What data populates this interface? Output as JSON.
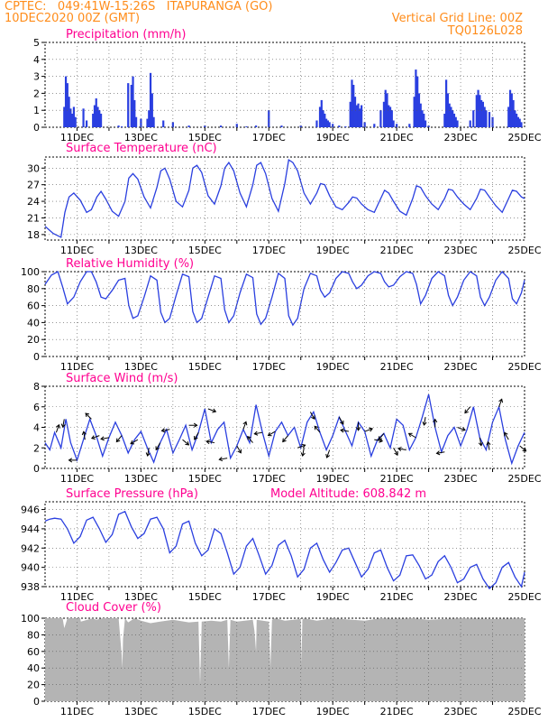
{
  "header": {
    "line1_left": "CPTEC:   049:41W-15:26S   ITAPURANGA (GO)",
    "line2_left": "10DEC2020 00Z (GMT)",
    "line1_right": "Vertical Grid Line: 00Z",
    "line2_right": "TQ0126L028"
  },
  "colors": {
    "header": "#ff8c1a",
    "title": "#ff0090",
    "series": "#2a3fe0",
    "cloud": "#b4b4b4",
    "grid": "#555555"
  },
  "chart_data": [
    {
      "id": "precip",
      "type": "bar",
      "title": "Precipitation (mm/h)",
      "x_range": [
        0,
        15
      ],
      "ylim": [
        0,
        5
      ],
      "yticks": [
        0,
        1,
        2,
        3,
        4,
        5
      ],
      "xtick_labels": [
        "11DEC",
        "13DEC",
        "15DEC",
        "17DEC",
        "19DEC",
        "21DEC",
        "23DEC",
        "25DEC"
      ],
      "x": [
        0.6,
        0.65,
        0.7,
        0.75,
        0.8,
        0.85,
        0.9,
        0.95,
        1.2,
        1.3,
        1.5,
        1.55,
        1.6,
        1.65,
        1.7,
        1.75,
        2.3,
        2.4,
        2.6,
        2.7,
        2.75,
        2.8,
        2.85,
        3.0,
        3.2,
        3.25,
        3.3,
        3.35,
        3.4,
        3.7,
        4.0,
        4.5,
        5.0,
        5.5,
        6.0,
        6.3,
        6.6,
        7.0,
        7.4,
        8.0,
        8.5,
        8.6,
        8.65,
        8.7,
        8.75,
        8.8,
        8.85,
        8.9,
        9.0,
        9.2,
        9.4,
        9.55,
        9.6,
        9.65,
        9.7,
        9.75,
        9.8,
        9.85,
        9.9,
        10.0,
        10.3,
        10.5,
        10.6,
        10.65,
        10.7,
        10.75,
        10.8,
        10.85,
        10.9,
        11.0,
        11.4,
        11.55,
        11.6,
        11.65,
        11.7,
        11.75,
        11.8,
        11.85,
        11.9,
        12.0,
        12.5,
        12.55,
        12.6,
        12.65,
        12.7,
        12.75,
        12.8,
        12.85,
        12.9,
        13.3,
        13.4,
        13.5,
        13.55,
        13.6,
        13.65,
        13.7,
        13.75,
        13.8,
        13.9,
        14.0,
        14.5,
        14.55,
        14.6,
        14.65,
        14.7,
        14.75,
        14.8,
        14.85,
        14.9
      ],
      "values": [
        1.2,
        3.0,
        2.6,
        1.8,
        1.1,
        0.8,
        1.2,
        0.6,
        1.1,
        0.4,
        0.8,
        1.3,
        1.7,
        1.2,
        1.0,
        0.8,
        0.1,
        0.05,
        2.6,
        2.5,
        3.0,
        1.6,
        0.6,
        0.5,
        0.5,
        1.0,
        3.2,
        2.0,
        0.6,
        0.4,
        0.3,
        0.1,
        0.1,
        0.1,
        0.2,
        0.05,
        0.1,
        1.0,
        0.1,
        0.1,
        0.4,
        1.2,
        1.6,
        1.0,
        0.8,
        0.5,
        0.4,
        0.3,
        0.2,
        0.1,
        0.05,
        1.5,
        2.8,
        2.5,
        1.8,
        1.3,
        1.4,
        1.1,
        1.3,
        0.3,
        0.2,
        1.0,
        1.5,
        2.2,
        2.0,
        1.3,
        1.2,
        1.0,
        0.4,
        0.2,
        0.2,
        1.8,
        3.4,
        3.0,
        2.0,
        1.4,
        1.0,
        0.8,
        0.4,
        0.1,
        0.8,
        2.8,
        2.0,
        1.4,
        1.2,
        1.0,
        0.8,
        0.6,
        0.4,
        0.4,
        1.0,
        1.9,
        2.2,
        1.9,
        1.6,
        1.5,
        1.2,
        1.0,
        0.9,
        0.6,
        1.2,
        2.2,
        2.0,
        1.6,
        1.0,
        0.8,
        0.6,
        0.5,
        0.3
      ]
    },
    {
      "id": "temp",
      "type": "line",
      "title": "Surface Temperature (nC)",
      "x_range": [
        0,
        15
      ],
      "ylim": [
        17,
        32
      ],
      "yticks": [
        18,
        21,
        24,
        27,
        30
      ],
      "xtick_labels": [
        "11DEC",
        "13DEC",
        "15DEC",
        "17DEC",
        "19DEC",
        "21DEC",
        "23DEC",
        "25DEC"
      ],
      "x": [
        0,
        0.25,
        0.5,
        0.62,
        0.75,
        0.9,
        1.1,
        1.3,
        1.45,
        1.62,
        1.75,
        1.9,
        2.1,
        2.3,
        2.5,
        2.62,
        2.75,
        2.9,
        3.1,
        3.3,
        3.5,
        3.62,
        3.75,
        3.9,
        4.1,
        4.3,
        4.5,
        4.62,
        4.75,
        4.9,
        5.1,
        5.3,
        5.5,
        5.62,
        5.75,
        5.9,
        6.1,
        6.3,
        6.5,
        6.62,
        6.75,
        6.9,
        7.1,
        7.3,
        7.5,
        7.62,
        7.75,
        7.9,
        8.1,
        8.3,
        8.5,
        8.62,
        8.75,
        8.9,
        9.1,
        9.3,
        9.5,
        9.62,
        9.75,
        9.9,
        10.1,
        10.3,
        10.5,
        10.62,
        10.75,
        10.9,
        11.1,
        11.3,
        11.5,
        11.62,
        11.75,
        11.9,
        12.1,
        12.3,
        12.5,
        12.62,
        12.75,
        12.9,
        13.1,
        13.3,
        13.5,
        13.62,
        13.75,
        13.9,
        14.1,
        14.3,
        14.5,
        14.62,
        14.75,
        14.9,
        15.0
      ],
      "values": [
        19.5,
        18.2,
        17.5,
        22.0,
        24.8,
        25.5,
        24.2,
        22.0,
        22.5,
        24.8,
        25.8,
        24.4,
        22.2,
        21.3,
        24.0,
        28.2,
        29.0,
        28.0,
        24.8,
        22.8,
        26.5,
        29.5,
        30.0,
        28.0,
        24.0,
        23.0,
        26.0,
        30.0,
        30.5,
        29.2,
        25.0,
        23.5,
        26.8,
        30.0,
        31.0,
        29.5,
        25.5,
        23.0,
        27.0,
        30.5,
        31.0,
        29.0,
        24.5,
        22.2,
        27.2,
        31.5,
        31.0,
        29.5,
        25.5,
        23.5,
        25.5,
        27.2,
        27.0,
        25.0,
        23.0,
        22.5,
        23.8,
        24.8,
        24.6,
        23.5,
        22.5,
        22.0,
        24.5,
        26.0,
        25.5,
        24.0,
        22.2,
        21.5,
        24.5,
        26.8,
        26.5,
        25.0,
        23.5,
        22.5,
        24.5,
        26.2,
        26.0,
        24.8,
        23.5,
        22.5,
        24.5,
        26.2,
        26.0,
        24.8,
        23.2,
        22.0,
        24.5,
        26.0,
        25.8,
        24.8,
        24.5
      ]
    },
    {
      "id": "rh",
      "type": "line",
      "title": "Relative Humidity (%)",
      "x_range": [
        0,
        15
      ],
      "ylim": [
        0,
        100
      ],
      "yticks": [
        0,
        20,
        40,
        60,
        80,
        100
      ],
      "xtick_labels": [
        "11DEC",
        "13DEC",
        "15DEC",
        "17DEC",
        "19DEC",
        "21DEC",
        "23DEC",
        "25DEC"
      ],
      "x": [
        0,
        0.2,
        0.4,
        0.55,
        0.7,
        0.9,
        1.1,
        1.3,
        1.45,
        1.6,
        1.75,
        1.9,
        2.1,
        2.3,
        2.5,
        2.62,
        2.75,
        2.9,
        3.1,
        3.3,
        3.5,
        3.62,
        3.75,
        3.9,
        4.1,
        4.3,
        4.5,
        4.62,
        4.75,
        4.9,
        5.1,
        5.3,
        5.5,
        5.62,
        5.75,
        5.9,
        6.1,
        6.3,
        6.5,
        6.62,
        6.75,
        6.9,
        7.1,
        7.3,
        7.5,
        7.62,
        7.75,
        7.9,
        8.1,
        8.3,
        8.5,
        8.62,
        8.75,
        8.9,
        9.1,
        9.3,
        9.5,
        9.62,
        9.75,
        9.9,
        10.1,
        10.3,
        10.5,
        10.62,
        10.75,
        10.9,
        11.1,
        11.3,
        11.5,
        11.62,
        11.75,
        11.9,
        12.1,
        12.3,
        12.5,
        12.62,
        12.75,
        12.9,
        13.1,
        13.3,
        13.5,
        13.62,
        13.75,
        13.9,
        14.1,
        14.3,
        14.5,
        14.62,
        14.75,
        14.9,
        15.0
      ],
      "values": [
        85,
        96,
        100,
        82,
        62,
        70,
        88,
        100,
        100,
        88,
        70,
        68,
        78,
        90,
        92,
        60,
        45,
        48,
        70,
        95,
        90,
        52,
        40,
        45,
        72,
        97,
        94,
        53,
        40,
        45,
        70,
        95,
        92,
        55,
        40,
        48,
        75,
        97,
        93,
        50,
        38,
        45,
        70,
        98,
        92,
        48,
        37,
        45,
        80,
        98,
        95,
        78,
        70,
        75,
        92,
        100,
        98,
        88,
        80,
        84,
        95,
        100,
        98,
        88,
        82,
        84,
        94,
        100,
        98,
        85,
        62,
        72,
        92,
        100,
        95,
        72,
        60,
        70,
        90,
        100,
        95,
        70,
        60,
        70,
        90,
        100,
        92,
        68,
        62,
        75,
        90
      ]
    },
    {
      "id": "wind",
      "type": "line",
      "title": "Surface Wind (m/s)",
      "x_range": [
        0,
        15
      ],
      "ylim": [
        0,
        8
      ],
      "yticks": [
        0,
        2,
        4,
        6,
        8
      ],
      "xtick_labels": [
        "11DEC",
        "13DEC",
        "15DEC",
        "17DEC",
        "19DEC",
        "21DEC",
        "23DEC",
        "25DEC"
      ],
      "x": [
        0,
        0.15,
        0.3,
        0.5,
        0.65,
        0.8,
        1.0,
        1.2,
        1.4,
        1.6,
        1.8,
        2.0,
        2.2,
        2.4,
        2.6,
        2.8,
        3.0,
        3.2,
        3.4,
        3.6,
        3.8,
        4.0,
        4.2,
        4.4,
        4.6,
        4.8,
        5.0,
        5.2,
        5.4,
        5.6,
        5.8,
        6.0,
        6.2,
        6.4,
        6.6,
        6.8,
        7.0,
        7.2,
        7.4,
        7.6,
        7.8,
        8.0,
        8.2,
        8.4,
        8.6,
        8.8,
        9.0,
        9.2,
        9.4,
        9.6,
        9.8,
        10.0,
        10.2,
        10.4,
        10.6,
        10.8,
        11.0,
        11.2,
        11.4,
        11.6,
        11.8,
        12.0,
        12.2,
        12.4,
        12.6,
        12.8,
        13.0,
        13.2,
        13.4,
        13.6,
        13.8,
        14.0,
        14.2,
        14.4,
        14.6,
        14.8,
        15.0
      ],
      "values": [
        2.5,
        1.8,
        3.5,
        2.0,
        4.8,
        2.5,
        0.8,
        2.8,
        4.8,
        3.2,
        1.2,
        3.0,
        4.5,
        3.2,
        1.5,
        2.8,
        3.6,
        2.0,
        0.6,
        2.5,
        3.8,
        1.5,
        2.8,
        4.2,
        1.8,
        3.5,
        5.8,
        2.5,
        3.8,
        4.5,
        1.0,
        2.2,
        3.8,
        2.5,
        6.2,
        3.5,
        1.2,
        3.6,
        4.5,
        3.2,
        4.0,
        2.0,
        4.5,
        5.5,
        3.5,
        1.8,
        3.2,
        5.0,
        3.6,
        2.2,
        4.5,
        3.6,
        1.2,
        2.8,
        3.4,
        2.0,
        4.8,
        4.2,
        1.8,
        3.0,
        5.0,
        7.2,
        4.0,
        1.6,
        3.2,
        4.0,
        2.2,
        3.8,
        6.0,
        3.0,
        1.8,
        4.5,
        6.0,
        2.8,
        0.5,
        2.2,
        3.5
      ],
      "arrows": [
        {
          "x": 0.35,
          "angle": 70
        },
        {
          "x": 0.6,
          "angle": -100
        },
        {
          "x": 1.0,
          "angle": 180
        },
        {
          "x": 1.25,
          "angle": 100
        },
        {
          "x": 1.45,
          "angle": 135
        },
        {
          "x": 1.7,
          "angle": -160
        },
        {
          "x": 2.0,
          "angle": -170
        },
        {
          "x": 2.4,
          "angle": -130
        },
        {
          "x": 2.9,
          "angle": -150
        },
        {
          "x": 3.25,
          "angle": -100
        },
        {
          "x": 3.6,
          "angle": -120
        },
        {
          "x": 3.9,
          "angle": -170
        },
        {
          "x": 4.3,
          "angle": -40
        },
        {
          "x": 4.5,
          "angle": 0
        },
        {
          "x": 4.8,
          "angle": -120
        },
        {
          "x": 5.1,
          "angle": -20
        },
        {
          "x": 5.3,
          "angle": 170
        },
        {
          "x": 5.7,
          "angle": -170
        },
        {
          "x": 6.0,
          "angle": -60
        },
        {
          "x": 6.2,
          "angle": 70
        },
        {
          "x": 6.5,
          "angle": 130
        },
        {
          "x": 6.8,
          "angle": -170
        },
        {
          "x": 7.2,
          "angle": -150
        },
        {
          "x": 7.6,
          "angle": -130
        },
        {
          "x": 7.9,
          "angle": 20
        },
        {
          "x": 8.1,
          "angle": -100
        },
        {
          "x": 8.3,
          "angle": -60
        },
        {
          "x": 8.6,
          "angle": 130
        },
        {
          "x": 8.9,
          "angle": -110
        },
        {
          "x": 9.2,
          "angle": -60
        },
        {
          "x": 9.5,
          "angle": 170
        },
        {
          "x": 9.8,
          "angle": -90
        },
        {
          "x": 10.0,
          "angle": 20
        },
        {
          "x": 10.3,
          "angle": -10
        },
        {
          "x": 10.6,
          "angle": -130
        },
        {
          "x": 10.9,
          "angle": -60
        },
        {
          "x": 11.3,
          "angle": 170
        },
        {
          "x": 11.6,
          "angle": 150
        },
        {
          "x": 11.9,
          "angle": -100
        },
        {
          "x": 12.2,
          "angle": 90
        },
        {
          "x": 12.5,
          "angle": -170
        },
        {
          "x": 12.9,
          "angle": -20
        },
        {
          "x": 13.3,
          "angle": -130
        },
        {
          "x": 13.6,
          "angle": -80
        },
        {
          "x": 13.9,
          "angle": 100
        },
        {
          "x": 14.2,
          "angle": 70
        },
        {
          "x": 14.5,
          "angle": 120
        },
        {
          "x": 14.85,
          "angle": -40
        }
      ]
    },
    {
      "id": "pressure",
      "type": "line",
      "title": "Surface Pressure (hPa)",
      "annotation": "Model Altitude: 608.842 m",
      "x_range": [
        0,
        15
      ],
      "ylim": [
        938,
        946.8
      ],
      "yticks": [
        938,
        940,
        942,
        944,
        946
      ],
      "xtick_labels": [
        "11DEC",
        "13DEC",
        "15DEC",
        "17DEC",
        "19DEC",
        "21DEC",
        "23DEC",
        "25DEC"
      ],
      "x": [
        0,
        0.15,
        0.3,
        0.5,
        0.7,
        0.9,
        1.1,
        1.3,
        1.5,
        1.7,
        1.9,
        2.1,
        2.3,
        2.5,
        2.7,
        2.9,
        3.1,
        3.3,
        3.5,
        3.7,
        3.9,
        4.1,
        4.3,
        4.5,
        4.7,
        4.9,
        5.1,
        5.3,
        5.5,
        5.7,
        5.9,
        6.1,
        6.3,
        6.5,
        6.7,
        6.9,
        7.1,
        7.3,
        7.5,
        7.7,
        7.9,
        8.1,
        8.3,
        8.5,
        8.7,
        8.9,
        9.1,
        9.3,
        9.5,
        9.7,
        9.9,
        10.1,
        10.3,
        10.5,
        10.7,
        10.9,
        11.1,
        11.3,
        11.5,
        11.7,
        11.9,
        12.1,
        12.3,
        12.5,
        12.7,
        12.9,
        13.1,
        13.3,
        13.5,
        13.7,
        13.9,
        14.1,
        14.3,
        14.5,
        14.7,
        14.9,
        15.0
      ],
      "values": [
        944.8,
        945.0,
        945.1,
        945.0,
        944.0,
        942.5,
        943.2,
        944.9,
        945.2,
        944.0,
        942.6,
        943.4,
        945.5,
        945.8,
        944.2,
        943.0,
        943.5,
        945.0,
        945.2,
        944.0,
        941.5,
        942.2,
        944.5,
        944.8,
        942.5,
        941.2,
        941.8,
        944.0,
        943.5,
        941.5,
        939.3,
        940.0,
        942.2,
        943.0,
        941.2,
        939.3,
        940.2,
        942.3,
        942.8,
        941.2,
        939.0,
        939.8,
        942.0,
        942.5,
        940.8,
        939.5,
        940.5,
        941.8,
        942.0,
        940.5,
        939.0,
        939.8,
        941.5,
        941.8,
        940.0,
        938.6,
        939.2,
        941.2,
        941.3,
        940.2,
        938.8,
        939.2,
        940.6,
        941.2,
        940.0,
        938.4,
        938.8,
        940.0,
        940.3,
        938.8,
        937.8,
        938.4,
        940.0,
        940.5,
        939.0,
        938.0,
        939.5
      ]
    },
    {
      "id": "cloud",
      "type": "area",
      "title": "Cloud Cover (%)",
      "x_range": [
        0,
        15
      ],
      "ylim": [
        0,
        100
      ],
      "yticks": [
        0,
        20,
        40,
        60,
        80,
        100
      ],
      "xtick_labels": [
        "11DEC",
        "13DEC",
        "15DEC",
        "17DEC",
        "19DEC",
        "21DEC",
        "23DEC",
        "25DEC"
      ],
      "x": [
        0,
        0.55,
        0.6,
        0.65,
        0.7,
        1.1,
        1.12,
        1.5,
        1.6,
        1.8,
        2.3,
        2.4,
        2.42,
        2.44,
        2.5,
        2.6,
        2.8,
        3.0,
        3.3,
        3.6,
        4.0,
        4.5,
        4.8,
        4.85,
        4.9,
        5.2,
        5.5,
        5.7,
        5.75,
        5.8,
        6.0,
        6.5,
        6.55,
        6.6,
        6.62,
        7.0,
        7.05,
        7.1,
        7.2,
        7.5,
        8.0,
        8.02,
        8.05,
        8.1,
        8.5,
        9.0,
        9.3,
        10.0,
        10.5,
        11.0,
        11.5,
        12.0,
        13.0,
        14.0,
        15.0
      ],
      "values": [
        100,
        100,
        88,
        94,
        100,
        100,
        96,
        100,
        98,
        100,
        100,
        55,
        40,
        75,
        100,
        95,
        100,
        97,
        94,
        96,
        98,
        95,
        96,
        20,
        96,
        97,
        96,
        98,
        40,
        98,
        96,
        98,
        85,
        60,
        98,
        96,
        40,
        98,
        100,
        97,
        99,
        45,
        98,
        100,
        97,
        100,
        99,
        97,
        100,
        99,
        100,
        98,
        100,
        99,
        100
      ]
    }
  ]
}
